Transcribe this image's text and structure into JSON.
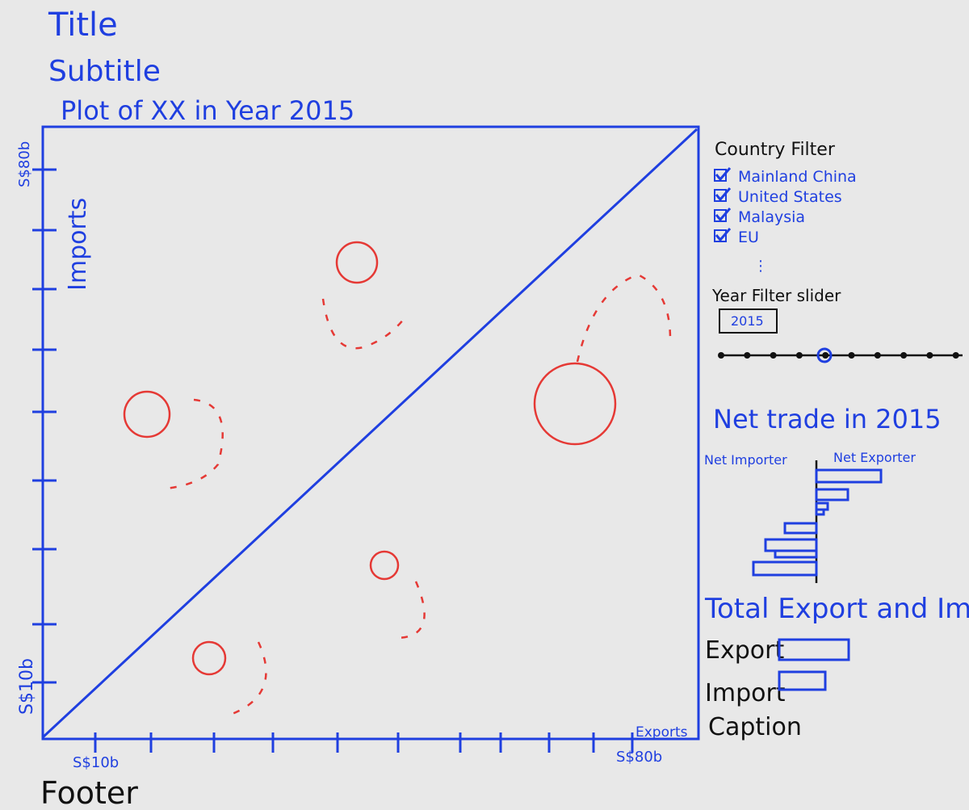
{
  "header": {
    "title": "Title",
    "subtitle": "Subtitle"
  },
  "plot": {
    "title": "Plot of XX in Year 2015",
    "y_axis": {
      "label": "Imports",
      "max_label": "S$80b",
      "min_label": "S$10b"
    },
    "x_axis": {
      "label": "Exports",
      "min_label": "S$10b",
      "max_label": "S$80b"
    }
  },
  "country_filter": {
    "title": "Country Filter",
    "items": [
      "Mainland China",
      "United States",
      "Malaysia",
      "EU"
    ],
    "more": "⋮"
  },
  "year_filter": {
    "title": "Year Filter slider",
    "value": "2015"
  },
  "net_trade": {
    "title": "Net trade in 2015",
    "left_label": "Net Importer",
    "right_label": "Net Exporter"
  },
  "total": {
    "title": "Total Export and Import",
    "labels": [
      "Export",
      "Import"
    ],
    "caption": "Caption"
  },
  "footer": "Footer"
}
